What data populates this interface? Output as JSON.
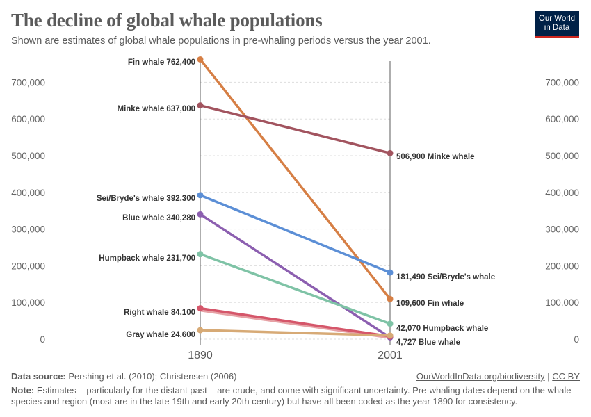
{
  "header": {
    "title": "The decline of global whale populations",
    "subtitle": "Shown are estimates of global whale populations in pre-whaling periods versus the year 2001.",
    "logo_line1": "Our World",
    "logo_line2": "in Data"
  },
  "footer": {
    "source_label": "Data source:",
    "source_text": "Pershing et al. (2010); Christensen (2006)",
    "link_text": "OurWorldInData.org/biodiversity",
    "separator": "|",
    "license_text": "CC BY",
    "note_label": "Note:",
    "note_text": "Estimates – particularly for the distant past – are crude, and come with significant uncertainty. Pre-whaling dates depend on the whale species and region (most are in the late 19th and early 20th century) but have all been coded as the year 1890 for consistency."
  },
  "chart_data": {
    "type": "line",
    "subtype": "slope",
    "title": "The decline of global whale populations",
    "x": [
      "1890",
      "2001"
    ],
    "ylim": [
      0,
      700000
    ],
    "yticks": [
      0,
      100000,
      200000,
      300000,
      400000,
      500000,
      600000,
      700000
    ],
    "ytick_labels": [
      "0",
      "100,000",
      "200,000",
      "300,000",
      "400,000",
      "500,000",
      "600,000",
      "700,000"
    ],
    "grid": true,
    "series": [
      {
        "name": "Fin whale",
        "values": [
          762400,
          109600
        ],
        "labels": [
          "762,400",
          "109,600"
        ],
        "color": "#d67f45",
        "show_end_label": true
      },
      {
        "name": "Minke whale",
        "values": [
          637000,
          506900
        ],
        "labels": [
          "637,000",
          "506,900"
        ],
        "color": "#a2545f",
        "show_end_label": true
      },
      {
        "name": "Sei/Bryde's whale",
        "values": [
          392300,
          181490
        ],
        "labels": [
          "392,300",
          "181,490"
        ],
        "color": "#5c8fd6",
        "show_end_label": true
      },
      {
        "name": "Blue whale",
        "values": [
          340280,
          4727
        ],
        "labels": [
          "340,280",
          "4,727"
        ],
        "color": "#8c5fb0",
        "show_end_label": true
      },
      {
        "name": "Humpback whale",
        "values": [
          231700,
          42070
        ],
        "labels": [
          "231,700",
          "42,070"
        ],
        "color": "#7fc3a6",
        "show_end_label": true
      },
      {
        "name": "Right whale",
        "values": [
          84100,
          7500
        ],
        "labels": [
          "84,100",
          ""
        ],
        "color": "#d5566a",
        "show_end_label": false
      },
      {
        "name": "Gray whale",
        "values": [
          24600,
          10000
        ],
        "labels": [
          "24,600",
          ""
        ],
        "color": "#d7aa76",
        "show_end_label": false
      }
    ]
  }
}
